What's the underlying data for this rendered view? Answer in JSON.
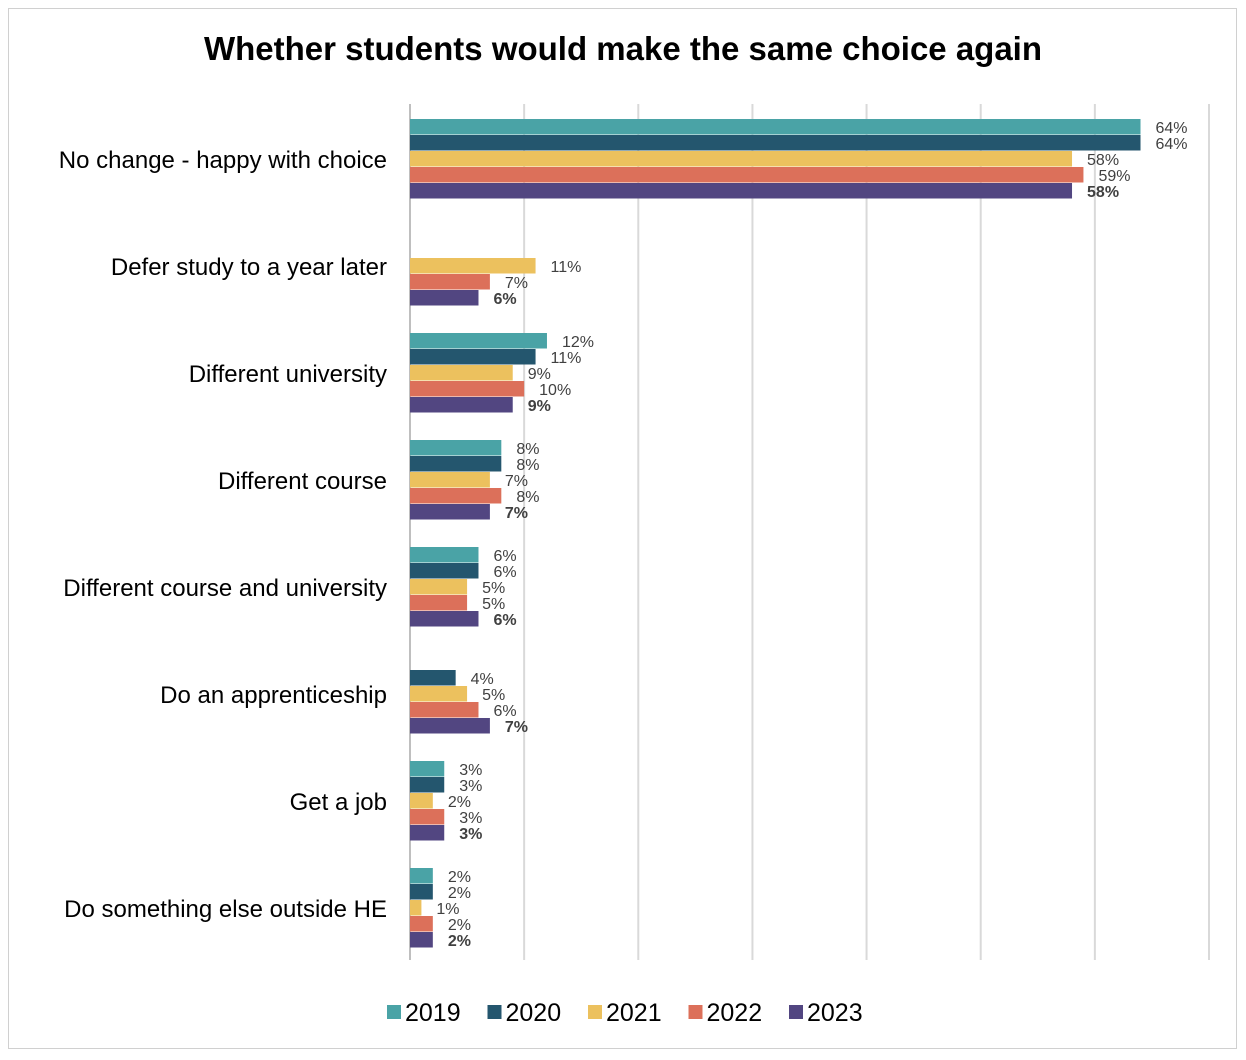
{
  "chart_data": {
    "type": "bar",
    "orientation": "horizontal",
    "title": "Whether students would make the same choice again",
    "xlabel": "",
    "ylabel": "",
    "xlim": [
      0,
      70
    ],
    "grid": true,
    "legend_position": "bottom",
    "categories": [
      "No change - happy with choice",
      "Defer study to a year later",
      "Different university",
      "Different course",
      "Different course and university",
      "Do an apprenticeship",
      "Get a job",
      "Do something else outside HE"
    ],
    "series": [
      {
        "name": "2019",
        "color": "#4aa3a6",
        "values": [
          64,
          null,
          12,
          8,
          6,
          null,
          3,
          2
        ]
      },
      {
        "name": "2020",
        "color": "#24566e",
        "values": [
          64,
          null,
          11,
          8,
          6,
          4,
          3,
          2
        ]
      },
      {
        "name": "2021",
        "color": "#ecc15e",
        "values": [
          58,
          11,
          9,
          7,
          5,
          5,
          2,
          1
        ]
      },
      {
        "name": "2022",
        "color": "#dc705a",
        "values": [
          59,
          7,
          10,
          8,
          5,
          6,
          3,
          2
        ]
      },
      {
        "name": "2023",
        "color": "#524681",
        "values": [
          58,
          6,
          9,
          7,
          6,
          7,
          3,
          2
        ]
      }
    ]
  }
}
